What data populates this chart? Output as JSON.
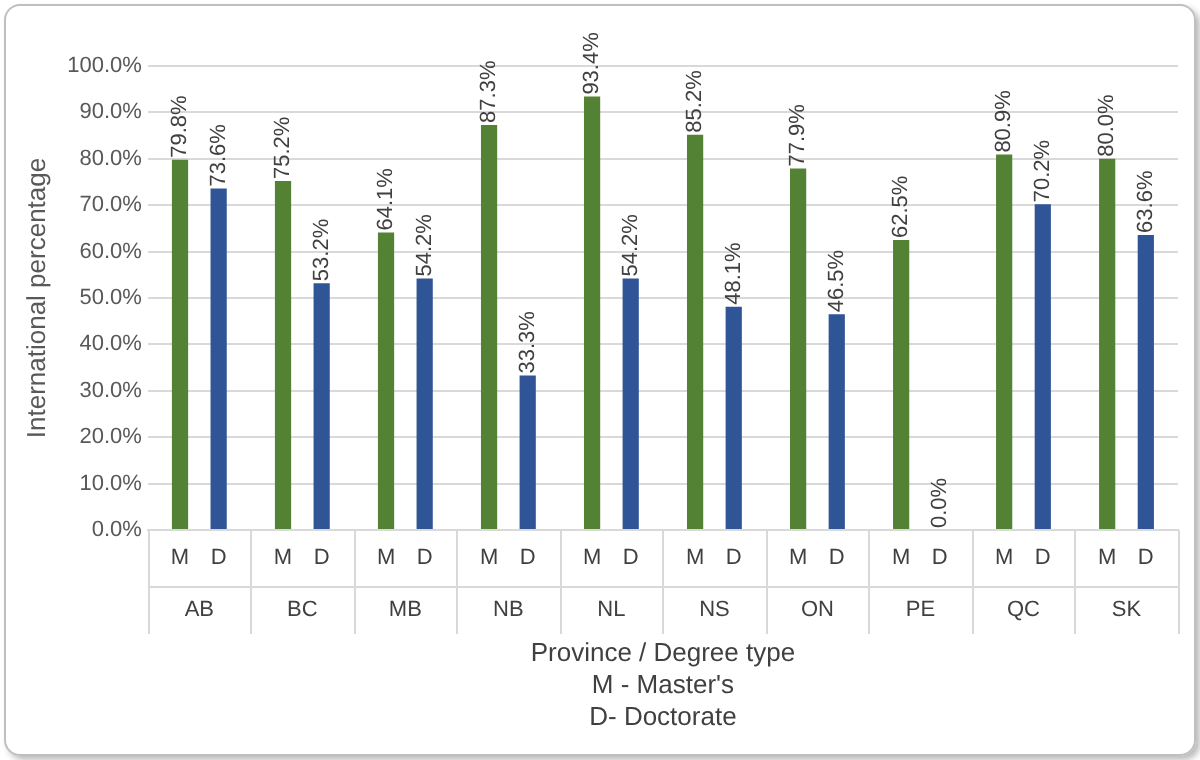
{
  "chart_data": {
    "type": "bar",
    "ylabel": "International percentage",
    "xlabel": "Province / Degree type",
    "annotations": [
      "M - Master's",
      "D- Doctorate"
    ],
    "categories": [
      "AB",
      "BC",
      "MB",
      "NB",
      "NL",
      "NS",
      "ON",
      "PE",
      "QC",
      "SK"
    ],
    "series": [
      {
        "name": "M",
        "color": "#548235",
        "values": [
          79.8,
          75.2,
          64.1,
          87.3,
          93.4,
          85.2,
          77.9,
          62.5,
          80.9,
          80.0
        ],
        "value_labels": [
          "79.8%",
          "75.2%",
          "64.1%",
          "87.3%",
          "93.4%",
          "85.2%",
          "77.9%",
          "62.5%",
          "80.9%",
          "80.0%"
        ]
      },
      {
        "name": "D",
        "color": "#2f5597",
        "values": [
          73.6,
          53.2,
          54.2,
          33.3,
          54.2,
          48.1,
          46.5,
          0.0,
          70.2,
          63.6
        ],
        "value_labels": [
          "73.6%",
          "53.2%",
          "54.2%",
          "33.3%",
          "54.2%",
          "48.1%",
          "46.5%",
          "0.0%",
          "70.2%",
          "63.6%"
        ]
      }
    ],
    "ylim": [
      0,
      100
    ],
    "yticks": [
      {
        "value": 0,
        "label": "0.0%"
      },
      {
        "value": 10,
        "label": "10.0%"
      },
      {
        "value": 20,
        "label": "20.0%"
      },
      {
        "value": 30,
        "label": "30.0%"
      },
      {
        "value": 40,
        "label": "40.0%"
      },
      {
        "value": 50,
        "label": "50.0%"
      },
      {
        "value": 60,
        "label": "60.0%"
      },
      {
        "value": 70,
        "label": "70.0%"
      },
      {
        "value": 80,
        "label": "80.0%"
      },
      {
        "value": 90,
        "label": "90.0%"
      },
      {
        "value": 100,
        "label": "100.0%"
      }
    ],
    "grid": "y",
    "legend": false
  }
}
